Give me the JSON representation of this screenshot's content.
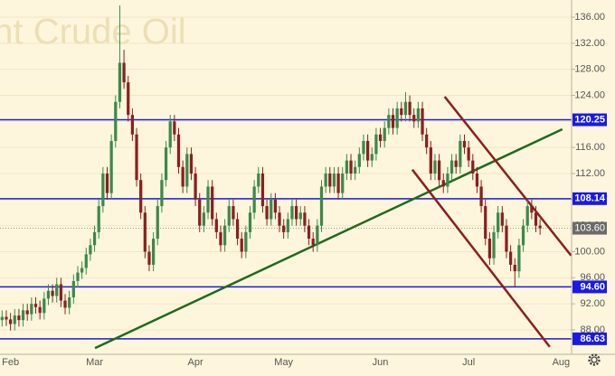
{
  "chart_data": {
    "type": "candlestick",
    "watermark": "Brent Crude Oil",
    "categories": [
      null,
      null,
      "Feb",
      null,
      null,
      null,
      null,
      null,
      null,
      null,
      null,
      null,
      null,
      null,
      null,
      null,
      null,
      null,
      null,
      null,
      null,
      null,
      "Mar",
      null,
      null,
      null,
      null,
      null,
      null,
      null,
      null,
      null,
      null,
      null,
      null,
      null,
      null,
      null,
      null,
      null,
      null,
      null,
      null,
      null,
      null,
      null,
      "Apr",
      null,
      null,
      null,
      null,
      null,
      null,
      null,
      null,
      null,
      null,
      null,
      null,
      null,
      null,
      null,
      null,
      null,
      null,
      null,
      null,
      "May",
      null,
      null,
      null,
      null,
      null,
      null,
      null,
      null,
      null,
      null,
      null,
      null,
      null,
      null,
      null,
      null,
      null,
      null,
      null,
      null,
      null,
      null,
      "Jun",
      null,
      null,
      null,
      null,
      null,
      null,
      null,
      null,
      null,
      null,
      null,
      null,
      null,
      null,
      null,
      null,
      null,
      null,
      null,
      null,
      "Jul",
      null,
      null,
      null,
      null,
      null,
      null,
      null,
      null,
      null,
      null,
      null,
      null,
      null,
      null,
      null,
      null,
      null,
      null,
      null,
      null,
      null,
      "Aug",
      null,
      null
    ],
    "open": [
      89.5,
      90,
      89.6,
      88.9,
      90.2,
      89.5,
      91,
      90.4,
      92,
      91.5,
      90.6,
      92.8,
      94,
      93.2,
      95,
      92.5,
      91.4,
      93,
      95.5,
      96.8,
      97.5,
      99.6,
      101,
      103,
      107,
      112,
      109,
      117,
      123,
      129,
      126,
      121,
      118,
      111,
      106,
      100,
      98,
      102,
      107,
      111,
      116,
      120,
      118,
      113,
      110,
      115,
      112,
      108,
      104,
      106,
      110,
      105,
      103,
      101,
      104,
      107,
      105,
      102,
      100,
      103,
      106,
      110,
      112,
      107,
      105,
      108,
      106,
      104,
      103,
      105,
      107,
      105,
      106,
      104,
      102,
      101,
      104,
      110,
      112,
      110,
      112,
      109,
      112,
      114,
      112,
      113,
      115,
      117,
      114,
      115,
      118,
      117,
      119,
      121,
      119,
      122,
      121,
      123,
      121,
      120,
      122,
      118,
      116,
      112,
      114,
      111,
      110,
      112,
      114,
      113,
      117,
      116,
      114,
      112,
      110,
      107,
      102,
      99,
      103,
      106,
      104,
      100,
      98,
      97,
      101,
      104,
      107,
      106,
      104,
      null,
      null,
      null,
      null,
      null,
      null,
      null
    ],
    "high": [
      91,
      91,
      90.6,
      91.2,
      91.2,
      92,
      92,
      93,
      93,
      92.5,
      93.8,
      95,
      95,
      96,
      96,
      93.5,
      94,
      96.5,
      97.8,
      98.5,
      100.6,
      102,
      104,
      108,
      113,
      113,
      118,
      124,
      137.8,
      131,
      127,
      122,
      119,
      112,
      107,
      101,
      103,
      108,
      112,
      117,
      121,
      121,
      119,
      114,
      116,
      116,
      113,
      109,
      107,
      111,
      111,
      106,
      104,
      105,
      108,
      108,
      106,
      103,
      104,
      107,
      111,
      113,
      113,
      108,
      109,
      109,
      107,
      105,
      106,
      108,
      108,
      107,
      107,
      105,
      103,
      105,
      111,
      113,
      113,
      113,
      113,
      113,
      115,
      115,
      114,
      116,
      118,
      118,
      116,
      119,
      119,
      120,
      122,
      122,
      123,
      123,
      124.5,
      124,
      122,
      123,
      123,
      119,
      117,
      115,
      115,
      112,
      113,
      115,
      115,
      118,
      118,
      117,
      115,
      113,
      111,
      108,
      103,
      104,
      107,
      107,
      105,
      101,
      99,
      102,
      105,
      108,
      108,
      107,
      105,
      null,
      null,
      null,
      null,
      null,
      null,
      null
    ],
    "low": [
      88.5,
      88.6,
      87.9,
      87.9,
      88.5,
      88.5,
      89.4,
      89.4,
      90.5,
      89.6,
      89.6,
      91.8,
      92.2,
      92.2,
      91.5,
      90.4,
      90.4,
      92,
      94.5,
      95.8,
      96.5,
      98.6,
      100,
      102,
      106,
      108,
      108,
      116,
      122,
      125,
      120,
      117,
      110,
      105,
      99,
      97,
      97,
      101,
      106,
      110,
      115,
      117,
      112,
      109,
      109,
      111,
      107,
      103,
      103,
      105,
      104,
      102,
      100,
      100,
      103,
      104,
      101,
      99,
      99,
      102,
      105,
      109,
      106,
      104,
      104,
      105,
      103,
      102,
      102,
      104,
      104,
      104,
      103,
      101,
      100,
      100,
      103,
      109,
      109,
      109,
      108,
      108,
      111,
      111,
      111,
      112,
      114,
      113,
      113,
      114,
      116,
      116,
      118,
      118,
      118,
      120,
      120,
      120,
      119,
      119,
      117,
      115,
      111,
      111,
      110,
      109,
      109,
      111,
      112,
      112,
      115,
      113,
      111,
      109,
      106,
      101,
      98,
      98,
      102,
      103,
      99,
      97,
      94.6,
      96,
      100,
      103,
      105,
      103,
      102.6,
      null,
      null,
      null,
      null,
      null,
      null,
      null
    ],
    "close": [
      90,
      89.6,
      88.9,
      90.2,
      89.5,
      91,
      90.4,
      92,
      91.5,
      90.6,
      92.8,
      94,
      93.2,
      95,
      92.5,
      91.4,
      93,
      95.5,
      96.8,
      97.5,
      99.6,
      101,
      103,
      107,
      112,
      109,
      117,
      123,
      129,
      126,
      121,
      118,
      111,
      106,
      100,
      98,
      102,
      107,
      111,
      116,
      120,
      118,
      113,
      110,
      115,
      112,
      108,
      104,
      106,
      110,
      105,
      103,
      101,
      104,
      107,
      105,
      102,
      100,
      103,
      106,
      110,
      112,
      107,
      105,
      108,
      106,
      104,
      103,
      105,
      107,
      105,
      106,
      104,
      102,
      101,
      104,
      110,
      112,
      110,
      112,
      109,
      112,
      114,
      112,
      113,
      115,
      117,
      114,
      115,
      118,
      117,
      119,
      121,
      119,
      122,
      121,
      123,
      121,
      120,
      122,
      118,
      116,
      112,
      114,
      111,
      110,
      112,
      114,
      113,
      117,
      116,
      114,
      112,
      110,
      107,
      102,
      99,
      103,
      106,
      104,
      100,
      98,
      97,
      101,
      104,
      107,
      106,
      104,
      103.6,
      null,
      null,
      null,
      null,
      null,
      null,
      null
    ],
    "up_color": "#3a8a4c",
    "down_color": "#8c1f1f",
    "ylim": [
      84.25,
      138.64
    ],
    "yticks": [
      {
        "value": 88,
        "label": "88.00"
      },
      {
        "value": 92,
        "label": "92.00"
      },
      {
        "value": 96,
        "label": "96.00"
      },
      {
        "value": 100,
        "label": "100.00"
      },
      {
        "value": 104,
        "label": "104.00"
      },
      {
        "value": 108,
        "label": "108.00"
      },
      {
        "value": 112,
        "label": "112.00"
      },
      {
        "value": 116,
        "label": "116.00"
      },
      {
        "value": 120,
        "label": "120.00"
      },
      {
        "value": 124,
        "label": "124.00"
      },
      {
        "value": 128,
        "label": "128.00"
      },
      {
        "value": 132,
        "label": "132.00"
      },
      {
        "value": 136,
        "label": "136.00"
      }
    ],
    "levels": [
      {
        "value": 120.25,
        "color": "#1a1ae6"
      },
      {
        "value": 108.14,
        "color": "#1a1ae6"
      },
      {
        "value": {
          "value": 94.6,
          "label": "94.60"
        },
        "color": "#1a1ae6"
      },
      {
        "value": 86.63,
        "color": "#1a1ae6"
      }
    ],
    "last_price": {
      "value": 103.6,
      "label": "103.60"
    },
    "trendlines": [
      {
        "color": "#1e6b1e",
        "points": [
          [
            22.1,
            85.2
          ],
          [
            133.3,
            118.8
          ]
        ]
      },
      {
        "color": "#8c1f1f",
        "points": [
          [
            105.3,
            123.8
          ],
          [
            135.4,
            99.4
          ]
        ]
      },
      {
        "color": "#8c1f1f",
        "points": [
          [
            97.6,
            112.6
          ],
          [
            130.3,
            85.4
          ]
        ]
      }
    ]
  }
}
